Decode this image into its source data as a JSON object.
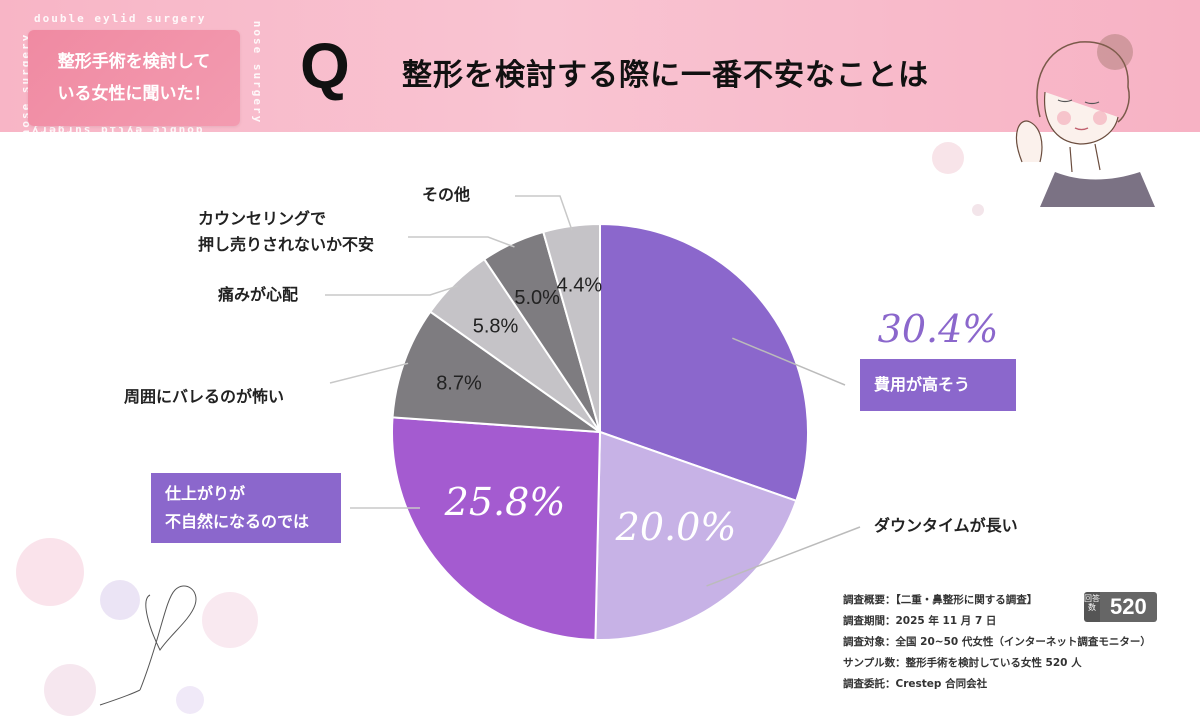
{
  "header": {
    "deco_text": "double eylid surgery",
    "deco_text_2": "nose surgery",
    "badge_line1": "整形手術を検討して",
    "badge_line2": "いる女性に聞いた！",
    "q_mark": "Q",
    "question": "整形を検討する際に一番不安なことは"
  },
  "colors": {
    "header_pink": "#f8b5c6",
    "purple_dark": "#8b67cc",
    "purple_mid": "#a45bd0",
    "purple_light": "#c7b2e6",
    "gray_dark": "#7e7c80",
    "gray_light": "#c5c3c7"
  },
  "chart_data": {
    "type": "pie",
    "start_angle_deg": 0,
    "direction": "clockwise",
    "slices": [
      {
        "label": "費用が高そう",
        "value": 30.4,
        "color": "#8b67cc",
        "display": "30.4%"
      },
      {
        "label": "ダウンタイムが長い",
        "value": 20.0,
        "color": "#c7b2e6",
        "display": "20.0%"
      },
      {
        "label": "仕上がりが不自然になるのでは",
        "value": 25.8,
        "color": "#a45bd0",
        "display": "25.8%"
      },
      {
        "label": "周囲にバレるのが怖い",
        "value": 8.7,
        "color": "#7e7c80",
        "display": "8.7%"
      },
      {
        "label": "痛みが心配",
        "value": 5.8,
        "color": "#c5c3c7",
        "display": "5.8%"
      },
      {
        "label": "カウンセリングで押し売りされないか不安",
        "value": 5.0,
        "color": "#7e7c80",
        "display": "5.0%"
      },
      {
        "label": "その他",
        "value": 4.4,
        "color": "#c5c3c7",
        "display": "4.4%"
      }
    ]
  },
  "labels": {
    "hiyou": "費用が高そう",
    "downtime": "ダウンタイムが長い",
    "shiagari_line1": "仕上がりが",
    "shiagari_line2": "不自然になるのでは",
    "bareru": "周囲にバレるのが怖い",
    "itami": "痛みが心配",
    "counsel_line1": "カウンセリングで",
    "counsel_line2": "押し売りされないか不安",
    "sonota": "その他"
  },
  "survey": {
    "line1": "調査概要：【二重・鼻整形に関する調査】",
    "line2": "調査期間：2025 年 11 月 7 日",
    "line3": "調査対象：全国 20~50 代女性（インターネット調査モニター）",
    "line4": "サンプル数：整形手術を検討している女性 520 人",
    "line5": "調査委託：Crestep 合同会社",
    "count_label": "回答数",
    "count_value": "520"
  }
}
